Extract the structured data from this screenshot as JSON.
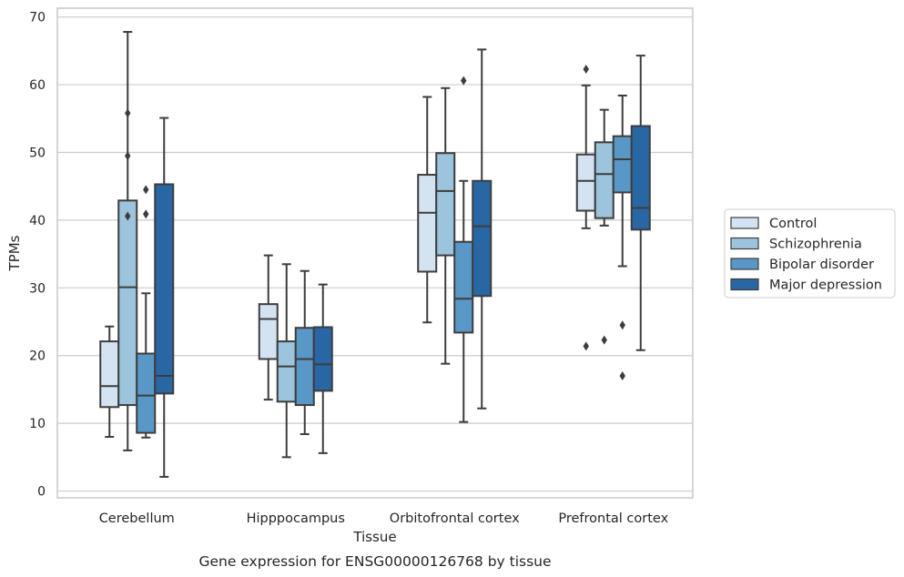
{
  "chart_data": {
    "type": "boxplot",
    "caption": "Gene expression for ENSG00000126768 by tissue",
    "xlabel": "Tissue",
    "ylabel": "TPMs",
    "ylim": [
      -1,
      71.3
    ],
    "yticks": [
      0,
      10,
      20,
      30,
      40,
      50,
      60,
      70
    ],
    "grid": true,
    "legend_position": "right",
    "categories": [
      "Cerebellum",
      "Hipppocampus",
      "Orbitofrontal cortex",
      "Prefrontal cortex"
    ],
    "series": [
      {
        "name": "Control",
        "color": "#d3e3f2",
        "boxes": [
          {
            "whislo": 8,
            "q1": 12.4,
            "med": 15.5,
            "q3": 22.1,
            "whishi": 24.3,
            "fliers": []
          },
          {
            "whislo": 13.5,
            "q1": 19.5,
            "med": 25.4,
            "q3": 27.6,
            "whishi": 34.8,
            "fliers": []
          },
          {
            "whislo": 24.9,
            "q1": 32.4,
            "med": 41.1,
            "q3": 46.7,
            "whishi": 58.2,
            "fliers": []
          },
          {
            "whislo": 38.8,
            "q1": 41.4,
            "med": 45.8,
            "q3": 49.7,
            "whishi": 59.9,
            "fliers": [
              21.4,
              62.3
            ]
          }
        ]
      },
      {
        "name": "Schizophrenia",
        "color": "#9cc4dc",
        "boxes": [
          {
            "whislo": 6,
            "q1": 12.7,
            "med": 30.1,
            "q3": 42.9,
            "whishi": 67.8,
            "fliers": [
              40.6,
              49.5,
              55.8
            ]
          },
          {
            "whislo": 5,
            "q1": 13.2,
            "med": 18.4,
            "q3": 22.1,
            "whishi": 33.5,
            "fliers": []
          },
          {
            "whislo": 18.8,
            "q1": 34.8,
            "med": 44.3,
            "q3": 49.9,
            "whishi": 59.5,
            "fliers": []
          },
          {
            "whislo": 39.2,
            "q1": 40.3,
            "med": 46.8,
            "q3": 51.5,
            "whishi": 56.3,
            "fliers": [
              22.3
            ]
          }
        ]
      },
      {
        "name": "Bipolar disorder",
        "color": "#5998c6",
        "boxes": [
          {
            "whislo": 7.9,
            "q1": 8.6,
            "med": 14.1,
            "q3": 20.3,
            "whishi": 29.2,
            "fliers": [
              40.9,
              44.5
            ]
          },
          {
            "whislo": 8.4,
            "q1": 12.7,
            "med": 19.5,
            "q3": 24.1,
            "whishi": 32.5,
            "fliers": []
          },
          {
            "whislo": 10.2,
            "q1": 23.4,
            "med": 28.4,
            "q3": 36.8,
            "whishi": 45.8,
            "fliers": [
              60.6
            ]
          },
          {
            "whislo": 33.2,
            "q1": 44.1,
            "med": 49,
            "q3": 52.4,
            "whishi": 58.4,
            "fliers": [
              17,
              24.5
            ]
          }
        ]
      },
      {
        "name": "Major depression",
        "color": "#2966a4",
        "boxes": [
          {
            "whislo": 2.1,
            "q1": 14.4,
            "med": 17,
            "q3": 45.3,
            "whishi": 55.1,
            "fliers": []
          },
          {
            "whislo": 5.6,
            "q1": 14.8,
            "med": 18.7,
            "q3": 24.2,
            "whishi": 30.5,
            "fliers": []
          },
          {
            "whislo": 12.2,
            "q1": 28.8,
            "med": 39.1,
            "q3": 45.8,
            "whishi": 65.2,
            "fliers": []
          },
          {
            "whislo": 20.8,
            "q1": 38.6,
            "med": 41.8,
            "q3": 53.9,
            "whishi": 64.3,
            "fliers": []
          }
        ]
      }
    ]
  }
}
